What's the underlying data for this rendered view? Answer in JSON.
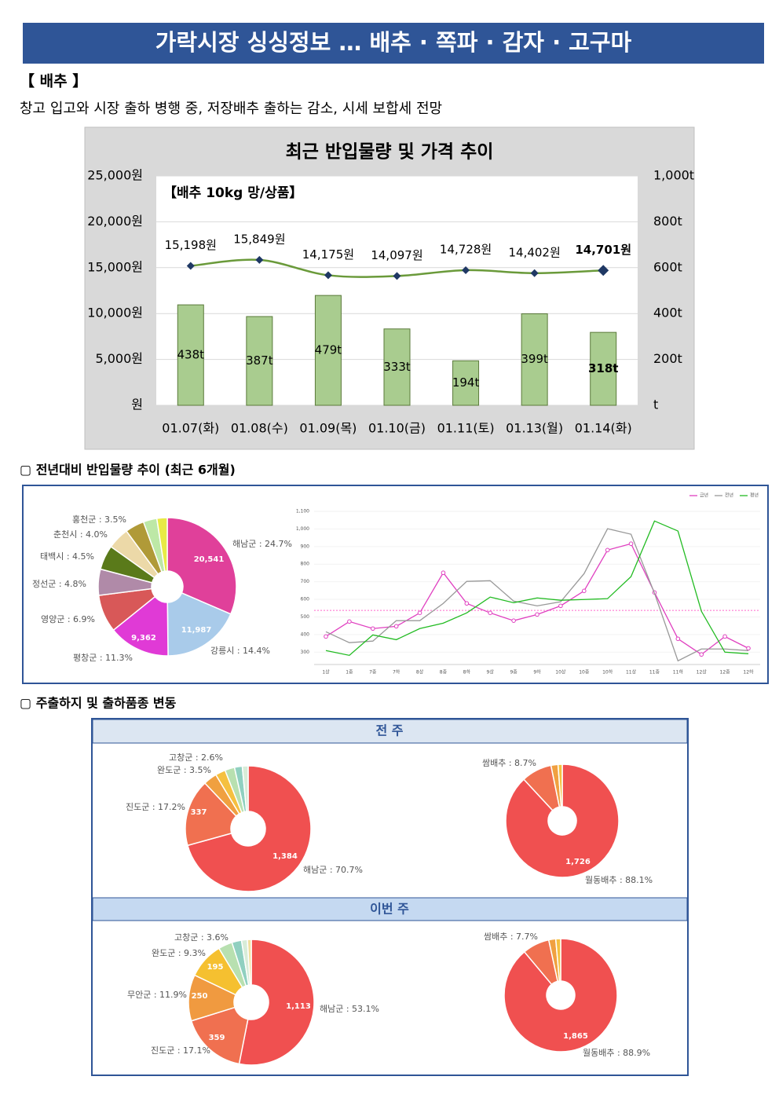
{
  "header": {
    "title": "가락시장 싱싱정보 … 배추 · 쪽파 · 감자 · 고구마"
  },
  "section": {
    "title": "【 배추 】",
    "summary": "창고 입고와 시장 출하 병행 중, 저장배추 출하는 감소, 시세 보합세 전망"
  },
  "headings": [
    "▢ 전년대비 반입물량 추이 (최근 6개월)",
    "▢ 주출하지 및 출하품종 변동"
  ],
  "panels": [
    "전 주",
    "이번 주"
  ],
  "chart_data": [
    {
      "type": "combo",
      "title": "최근 반입물량 및 가격 추이",
      "annotation": "【배추 10kg 망/상품】",
      "categories": [
        "01.07(화)",
        "01.08(수)",
        "01.09(목)",
        "01.10(금)",
        "01.11(토)",
        "01.13(월)",
        "01.14(화)"
      ],
      "series": [
        {
          "type": "bar",
          "axis": "y2",
          "color": "#a9cc8f",
          "values": [
            438,
            387,
            479,
            333,
            194,
            399,
            318
          ],
          "value_labels": [
            "438t",
            "387t",
            "479t",
            "333t",
            "194t",
            "399t",
            "318t"
          ]
        },
        {
          "type": "line",
          "color": "#6a9a3a",
          "marker_color": "#1f3864",
          "values": [
            15198,
            15849,
            14175,
            14097,
            14728,
            14402,
            14701
          ],
          "value_labels": [
            "15,198원",
            "15,849원",
            "14,175원",
            "14,097원",
            "14,728원",
            "14,402원",
            "14,701원"
          ]
        }
      ],
      "ylim": [
        0,
        25000
      ],
      "yticks": [
        {
          "value": 0,
          "label": "원"
        },
        {
          "value": 5000,
          "label": "5,000원"
        },
        {
          "value": 10000,
          "label": "10,000원"
        },
        {
          "value": 15000,
          "label": "15,000원"
        },
        {
          "value": 20000,
          "label": "20,000원"
        },
        {
          "value": 25000,
          "label": "25,000원"
        }
      ],
      "y2lim": [
        0,
        1000
      ],
      "y2ticks": [
        {
          "value": 0,
          "label": "t"
        },
        {
          "value": 200,
          "label": "200t"
        },
        {
          "value": 400,
          "label": "400t"
        },
        {
          "value": 600,
          "label": "600t"
        },
        {
          "value": 800,
          "label": "800t"
        },
        {
          "value": 1000,
          "label": "1,000t"
        }
      ],
      "grid": true
    },
    {
      "type": "pie",
      "labels": [
        "해남군 : 24.7%",
        "강릉시 : 14.4%",
        "평창군 : 11.3%",
        "영양군 : 6.9%",
        "정선군 : 4.8%",
        "태백시 : 4.5%",
        "춘천시 : 4.0%",
        "홍천군 : 3.5%",
        null,
        null
      ],
      "values": [
        24.7,
        14.4,
        11.3,
        6.9,
        4.8,
        4.5,
        4.0,
        3.5,
        2.5,
        1.9
      ],
      "inner_labels": [
        "20,541",
        "11,987",
        "9,362",
        null,
        null,
        null,
        null,
        null,
        null,
        null
      ],
      "colors": [
        "#e0409a",
        "#a9cbea",
        "#e03ad6",
        "#d85858",
        "#b08aa8",
        "#5a7a1a",
        "#ecd9a8",
        "#b09a38",
        "#bde8a6",
        "#e8ea46"
      ]
    },
    {
      "type": "line",
      "categories": [
        "1상",
        "1중",
        "7중",
        "7하",
        "8상",
        "8중",
        "8하",
        "9상",
        "9중",
        "9하",
        "10상",
        "10중",
        "10하",
        "11상",
        "11중",
        "11하",
        "12상",
        "12중",
        "12하"
      ],
      "series": [
        {
          "name": "금년",
          "color": "#e040c0",
          "values": [
            389,
            474,
            434,
            447,
            523,
            751,
            577,
            523,
            479,
            514,
            563,
            648,
            880,
            916,
            639,
            376,
            287,
            389,
            322
          ]
        },
        {
          "name": "전년",
          "color": "#999999",
          "values": [
            416,
            354,
            363,
            479,
            479,
            577,
            702,
            706,
            590,
            563,
            586,
            746,
            1001,
            970,
            635,
            251,
            318,
            318,
            309
          ]
        },
        {
          "name": "평년",
          "color": "#22bb22",
          "values": [
            309,
            282,
            398,
            371,
            434,
            465,
            523,
            613,
            581,
            608,
            595,
            599,
            604,
            729,
            1045,
            988,
            532,
            300,
            291
          ]
        }
      ],
      "ylim": [
        230,
        1120
      ],
      "yticks": [
        300,
        400,
        500,
        600,
        700,
        800,
        900,
        {
          "value": 1000,
          "label": "1,000"
        },
        {
          "value": 1100,
          "label": "1,100"
        }
      ],
      "reference_line": {
        "value": 537,
        "color": "#ff66cc"
      },
      "legend": "top-right"
    },
    {
      "type": "pie",
      "labels": [
        "해남군 : 70.7%",
        "진도군 : 17.2%",
        "완도군 : 3.5%",
        "고창군 : 2.6%",
        null,
        null,
        null
      ],
      "values": [
        70.7,
        17.2,
        3.5,
        2.6,
        2.5,
        2.0,
        1.5
      ],
      "inner_labels": [
        "1,384",
        "337",
        null,
        null,
        null,
        null,
        null
      ],
      "colors": [
        "#f05050",
        "#f07050",
        "#f0a040",
        "#f5c040",
        "#b8e0b0",
        "#90d0c0",
        "#d8ecd8"
      ]
    },
    {
      "type": "pie",
      "labels": [
        "월동배추 : 88.1%",
        "쌈배추 : 8.7%",
        null,
        null
      ],
      "values": [
        88.1,
        8.7,
        2.0,
        1.2
      ],
      "inner_labels": [
        "1,726",
        null,
        null,
        null
      ],
      "colors": [
        "#f05050",
        "#f07050",
        "#f0a040",
        "#f5c040"
      ]
    },
    {
      "type": "pie",
      "labels": [
        "해남군 : 53.1%",
        "진도군 : 17.1%",
        "무안군 : 11.9%",
        "완도군 : 9.3%",
        "고창군 : 3.6%",
        null,
        null,
        null
      ],
      "values": [
        53.1,
        17.1,
        11.9,
        9.3,
        3.6,
        2.5,
        1.5,
        1.0
      ],
      "inner_labels": [
        "1,113",
        "359",
        "250",
        "195",
        null,
        null,
        null,
        null
      ],
      "colors": [
        "#f05050",
        "#f07050",
        "#f09a40",
        "#f5c030",
        "#b8e0b0",
        "#90d0c0",
        "#d8ecd8",
        "#f0e0a0"
      ]
    },
    {
      "type": "pie",
      "labels": [
        "월동배추 : 88.9%",
        "쌈배추 : 7.7%",
        null,
        null
      ],
      "values": [
        88.9,
        7.7,
        2.0,
        1.4
      ],
      "inner_labels": [
        "1,865",
        null,
        null,
        null
      ],
      "colors": [
        "#f05050",
        "#f07050",
        "#f0a040",
        "#f5c040"
      ]
    }
  ]
}
